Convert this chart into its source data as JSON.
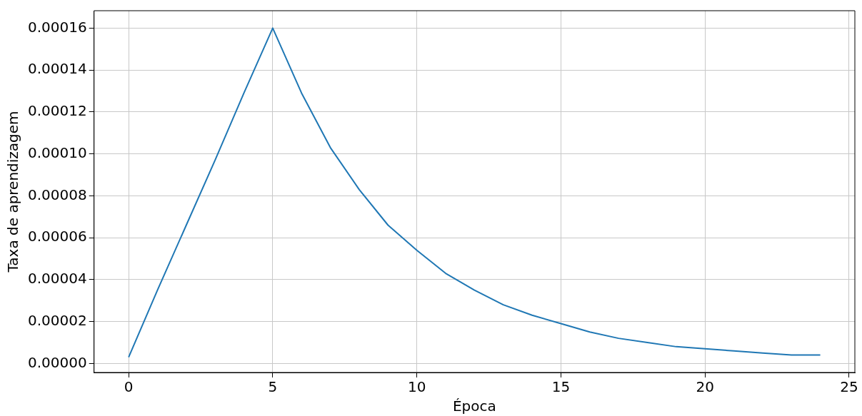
{
  "chart_data": {
    "type": "line",
    "xlabel": "Época",
    "ylabel": "Taxa de aprendizagem",
    "x": [
      0,
      1,
      2,
      3,
      4,
      5,
      6,
      7,
      8,
      9,
      10,
      11,
      12,
      13,
      14,
      15,
      16,
      17,
      18,
      19,
      20,
      21,
      22,
      23,
      24
    ],
    "series": [
      {
        "color": "#1f77b4",
        "values": [
          3e-06,
          3.5e-05,
          6.6e-05,
          9.7e-05,
          0.000129,
          0.00016,
          0.000129,
          0.000103,
          8.3e-05,
          6.6e-05,
          5.4e-05,
          4.3e-05,
          3.5e-05,
          2.8e-05,
          2.3e-05,
          1.9e-05,
          1.5e-05,
          1.2e-05,
          1e-05,
          8e-06,
          7e-06,
          6e-06,
          5e-06,
          4e-06,
          4e-06
        ]
      }
    ],
    "xlim": [
      -1.2,
      25.2
    ],
    "xticks": [
      0,
      5,
      10,
      15,
      20,
      25
    ],
    "ylim": [
      -4.3e-06,
      0.0001683
    ],
    "yticks": [
      {
        "value": 0,
        "label": "0.00000"
      },
      {
        "value": 2e-05,
        "label": "0.00002"
      },
      {
        "value": 4e-05,
        "label": "0.00004"
      },
      {
        "value": 6e-05,
        "label": "0.00006"
      },
      {
        "value": 8e-05,
        "label": "0.00008"
      },
      {
        "value": 0.0001,
        "label": "0.00010"
      },
      {
        "value": 0.00012,
        "label": "0.00012"
      },
      {
        "value": 0.00014,
        "label": "0.00014"
      },
      {
        "value": 0.00016,
        "label": "0.00016"
      }
    ],
    "grid": true,
    "legend": false,
    "marker": "none",
    "line_style": "solid"
  }
}
